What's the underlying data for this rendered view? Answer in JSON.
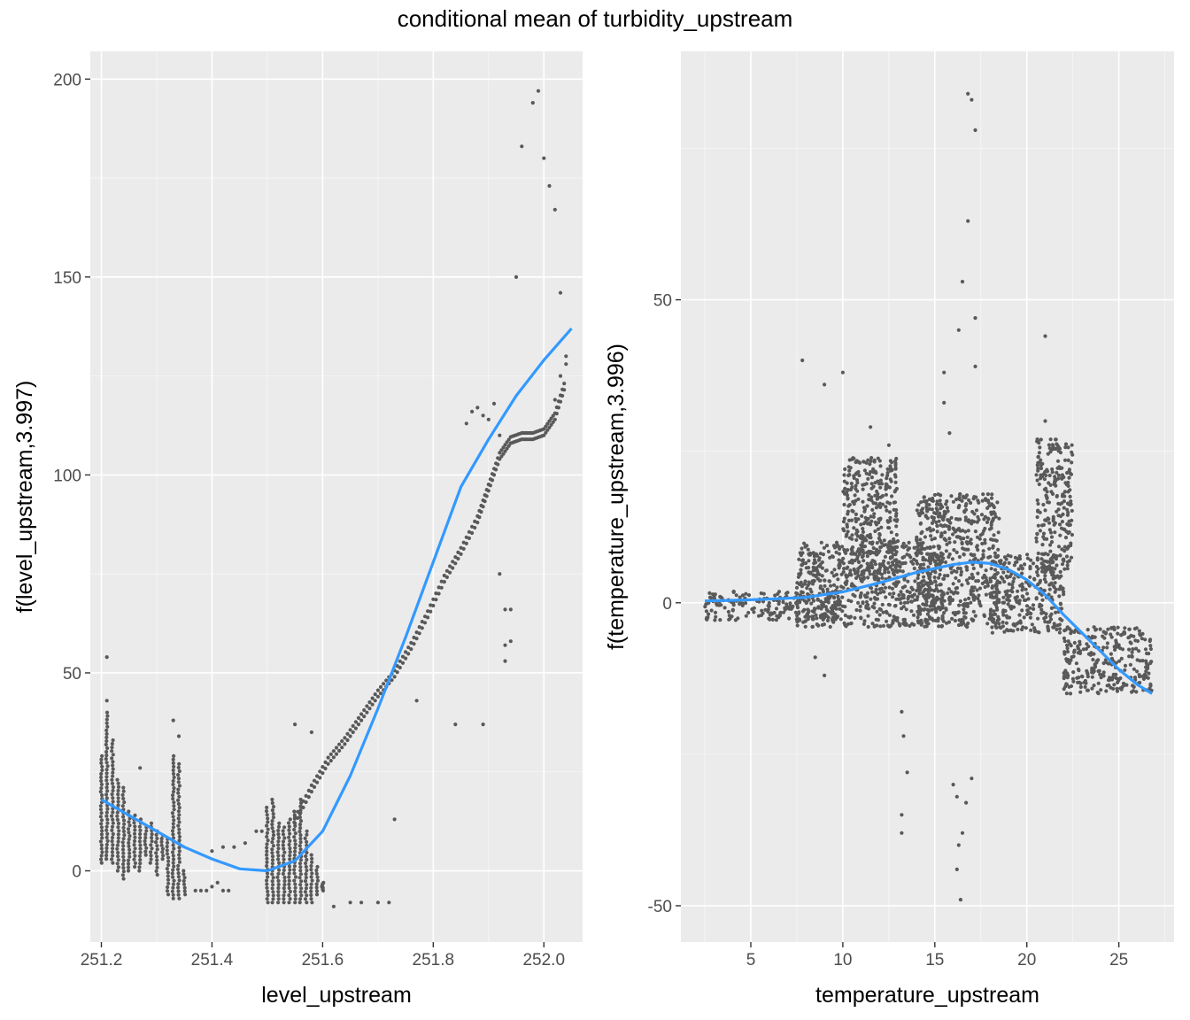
{
  "title": "conditional mean of turbidity_upstream",
  "colors": {
    "panel_background": "#ebebeb",
    "grid_major": "#ffffff",
    "points": "#595959",
    "smooth_line": "#3399ff",
    "tick_text": "#4d4d4d"
  },
  "chart_data": [
    {
      "type": "scatter",
      "xlabel": "level_upstream",
      "ylabel": "f(level_upstream,3.997)",
      "xlim": [
        251.18,
        252.07
      ],
      "ylim": [
        -18,
        207
      ],
      "x_ticks": [
        251.2,
        251.4,
        251.6,
        251.8,
        252.0
      ],
      "x_tick_labels": [
        "251.2",
        "251.4",
        "251.6",
        "251.8",
        "252.0"
      ],
      "y_ticks": [
        0,
        50,
        100,
        150,
        200
      ],
      "y_tick_labels": [
        "0",
        "50",
        "100",
        "150",
        "200"
      ],
      "grid": true,
      "point_groups": {
        "vertical_bars": [
          {
            "x": 251.2,
            "y0": 2,
            "y1": 29
          },
          {
            "x": 251.21,
            "y0": 3,
            "y1": 40
          },
          {
            "x": 251.22,
            "y0": 2,
            "y1": 33
          },
          {
            "x": 251.23,
            "y0": 0,
            "y1": 23
          },
          {
            "x": 251.24,
            "y0": -2,
            "y1": 21
          },
          {
            "x": 251.25,
            "y0": 0,
            "y1": 15
          },
          {
            "x": 251.26,
            "y0": 1,
            "y1": 14
          },
          {
            "x": 251.27,
            "y0": 0,
            "y1": 13
          },
          {
            "x": 251.28,
            "y0": 4,
            "y1": 11
          },
          {
            "x": 251.29,
            "y0": 2,
            "y1": 12
          },
          {
            "x": 251.3,
            "y0": -1,
            "y1": 10
          },
          {
            "x": 251.31,
            "y0": 3,
            "y1": 9
          },
          {
            "x": 251.32,
            "y0": -6,
            "y1": 8
          },
          {
            "x": 251.33,
            "y0": -7,
            "y1": 29
          },
          {
            "x": 251.34,
            "y0": -7,
            "y1": 27
          },
          {
            "x": 251.35,
            "y0": -6,
            "y1": 0
          },
          {
            "x": 251.5,
            "y0": -8,
            "y1": 16
          },
          {
            "x": 251.51,
            "y0": -8,
            "y1": 18
          },
          {
            "x": 251.52,
            "y0": -8,
            "y1": 12
          },
          {
            "x": 251.53,
            "y0": -8,
            "y1": 11
          },
          {
            "x": 251.54,
            "y0": -8,
            "y1": 13
          },
          {
            "x": 251.55,
            "y0": -8,
            "y1": 15
          },
          {
            "x": 251.56,
            "y0": -8,
            "y1": 18
          },
          {
            "x": 251.57,
            "y0": -8,
            "y1": 10
          },
          {
            "x": 251.58,
            "y0": -8,
            "y1": 4
          },
          {
            "x": 251.59,
            "y0": -6,
            "y1": 1
          },
          {
            "x": 251.6,
            "y0": -5,
            "y1": -3
          }
        ],
        "diagonal_band": [
          [
            251.55,
            12
          ],
          [
            251.58,
            20
          ],
          [
            251.61,
            27
          ],
          [
            251.64,
            32
          ],
          [
            251.67,
            38
          ],
          [
            251.7,
            44
          ],
          [
            251.73,
            49
          ],
          [
            251.76,
            56
          ],
          [
            251.79,
            64
          ],
          [
            251.82,
            73
          ],
          [
            251.85,
            80
          ],
          [
            251.88,
            88
          ],
          [
            251.9,
            96
          ],
          [
            251.92,
            104
          ],
          [
            251.94,
            108
          ],
          [
            251.96,
            109
          ],
          [
            251.98,
            109
          ],
          [
            252.0,
            110
          ],
          [
            252.02,
            114
          ],
          [
            252.04,
            123
          ]
        ],
        "scattered": [
          [
            251.21,
            54
          ],
          [
            251.21,
            43
          ],
          [
            251.27,
            26
          ],
          [
            251.33,
            38
          ],
          [
            251.34,
            34
          ],
          [
            251.37,
            -5
          ],
          [
            251.38,
            -5
          ],
          [
            251.39,
            -5
          ],
          [
            251.4,
            -4
          ],
          [
            251.41,
            -3
          ],
          [
            251.42,
            -5
          ],
          [
            251.43,
            -5
          ],
          [
            251.4,
            5
          ],
          [
            251.42,
            6
          ],
          [
            251.44,
            6
          ],
          [
            251.46,
            7
          ],
          [
            251.48,
            10
          ],
          [
            251.49,
            10
          ],
          [
            251.55,
            37
          ],
          [
            251.58,
            35
          ],
          [
            251.62,
            -9
          ],
          [
            251.65,
            -8
          ],
          [
            251.67,
            -8
          ],
          [
            251.7,
            -8
          ],
          [
            251.72,
            -8
          ],
          [
            251.73,
            13
          ],
          [
            251.77,
            43
          ],
          [
            251.84,
            37
          ],
          [
            251.89,
            37
          ],
          [
            251.86,
            113
          ],
          [
            251.87,
            116
          ],
          [
            251.88,
            117
          ],
          [
            251.89,
            115
          ],
          [
            251.9,
            114
          ],
          [
            251.91,
            118
          ],
          [
            251.92,
            110
          ],
          [
            251.93,
            66
          ],
          [
            251.94,
            66
          ],
          [
            251.93,
            57
          ],
          [
            251.94,
            58
          ],
          [
            251.93,
            53
          ],
          [
            251.92,
            75
          ],
          [
            251.95,
            150
          ],
          [
            251.96,
            183
          ],
          [
            251.98,
            194
          ],
          [
            251.99,
            197
          ],
          [
            252.0,
            180
          ],
          [
            252.01,
            173
          ],
          [
            252.02,
            167
          ],
          [
            252.03,
            146
          ],
          [
            252.04,
            130
          ],
          [
            252.04,
            128
          ],
          [
            252.03,
            125
          ],
          [
            252.02,
            119
          ]
        ]
      },
      "smooth": {
        "x": [
          251.2,
          251.25,
          251.3,
          251.35,
          251.4,
          251.45,
          251.5,
          251.55,
          251.6,
          251.65,
          251.7,
          251.75,
          251.8,
          251.85,
          251.9,
          251.95,
          252.0,
          252.05
        ],
        "y": [
          18,
          14,
          10,
          6,
          3,
          0.5,
          0,
          2.5,
          10,
          24,
          41,
          59,
          78,
          97,
          109,
          120,
          129,
          137
        ]
      }
    },
    {
      "type": "scatter",
      "xlabel": "temperature_upstream",
      "ylabel": "f(temperature_upstream,3.996)",
      "xlim": [
        1.2,
        28.0
      ],
      "ylim": [
        -56,
        91
      ],
      "x_ticks": [
        5,
        10,
        15,
        20,
        25
      ],
      "x_tick_labels": [
        "5",
        "10",
        "15",
        "20",
        "25"
      ],
      "y_ticks": [
        -50,
        0,
        50
      ],
      "y_tick_labels": [
        "-50",
        "0",
        "50"
      ],
      "grid": true,
      "point_groups": {
        "dense_regions": [
          {
            "x0": 2.5,
            "x1": 10.0,
            "y0": -3,
            "y1": 2
          },
          {
            "x0": 7.5,
            "x1": 15.5,
            "y0": -4,
            "y1": 10
          },
          {
            "x0": 10.0,
            "x1": 13.0,
            "y0": 3,
            "y1": 24
          },
          {
            "x0": 14.0,
            "x1": 18.5,
            "y0": -4,
            "y1": 18
          },
          {
            "x0": 18.0,
            "x1": 22.0,
            "y0": -5,
            "y1": 8
          },
          {
            "x0": 20.5,
            "x1": 22.5,
            "y0": 5,
            "y1": 27
          },
          {
            "x0": 22.0,
            "x1": 26.8,
            "y0": -15,
            "y1": -4
          }
        ],
        "scattered": [
          [
            7.8,
            40
          ],
          [
            9.0,
            36
          ],
          [
            10.0,
            38
          ],
          [
            11.5,
            29
          ],
          [
            12.5,
            26
          ],
          [
            15.5,
            38
          ],
          [
            16.8,
            84
          ],
          [
            17.0,
            83
          ],
          [
            17.2,
            78
          ],
          [
            16.8,
            63
          ],
          [
            16.5,
            53
          ],
          [
            17.2,
            47
          ],
          [
            16.3,
            45
          ],
          [
            17.2,
            39
          ],
          [
            21.0,
            44
          ],
          [
            21.0,
            30
          ],
          [
            15.5,
            33
          ],
          [
            15.8,
            28
          ],
          [
            13.2,
            -18
          ],
          [
            13.3,
            -22
          ],
          [
            13.5,
            -28
          ],
          [
            13.2,
            -35
          ],
          [
            13.2,
            -38
          ],
          [
            16.0,
            -30
          ],
          [
            16.2,
            -32
          ],
          [
            16.5,
            -38
          ],
          [
            16.3,
            -40
          ],
          [
            16.2,
            -44
          ],
          [
            16.4,
            -49
          ],
          [
            16.7,
            -33
          ],
          [
            17.0,
            -29
          ],
          [
            9.0,
            -12
          ],
          [
            8.5,
            -9
          ]
        ]
      },
      "smooth": {
        "x": [
          2.5,
          4,
          6,
          8,
          10,
          12,
          14,
          16,
          17,
          18,
          19,
          20,
          21,
          22,
          23,
          24,
          25,
          26,
          26.8
        ],
        "y": [
          0.3,
          0.4,
          0.6,
          0.9,
          1.8,
          3.3,
          5.0,
          6.3,
          6.7,
          6.5,
          5.5,
          3.8,
          1.3,
          -2.0,
          -5.0,
          -8.0,
          -11.0,
          -13.5,
          -15.0
        ]
      }
    }
  ]
}
